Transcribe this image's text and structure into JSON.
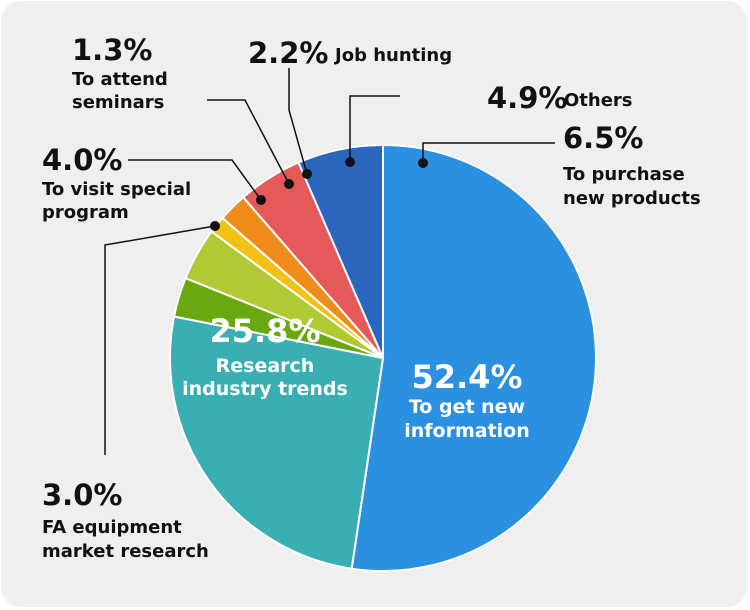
{
  "chart_data": {
    "type": "pie",
    "start_angle_deg": 0,
    "direction": "clockwise",
    "series": [
      {
        "name": "To get new information",
        "value": 52.4,
        "color": "#2b90e0",
        "pct_label": "52.4%",
        "lines": [
          "To get new",
          "information"
        ],
        "label_placement": "inside"
      },
      {
        "name": "Research industry trends",
        "value": 25.8,
        "color": "#3aafb3",
        "pct_label": "25.8%",
        "lines": [
          "Research",
          "industry trends"
        ],
        "label_placement": "inside"
      },
      {
        "name": "FA equipment market research",
        "value": 3.0,
        "color": "#6aa812",
        "pct_label": "3.0%",
        "lines": [
          "FA equipment",
          "market research"
        ],
        "label_placement": "outside"
      },
      {
        "name": "To visit special program",
        "value": 4.0,
        "color": "#b1c932",
        "pct_label": "4.0%",
        "lines": [
          "To visit special",
          "program"
        ],
        "label_placement": "outside"
      },
      {
        "name": "To attend seminars",
        "value": 1.3,
        "color": "#f4c013",
        "pct_label": "1.3%",
        "lines": [
          "To attend",
          "seminars"
        ],
        "label_placement": "outside"
      },
      {
        "name": "Job hunting",
        "value": 2.2,
        "color": "#f08c1a",
        "pct_label": "2.2%",
        "lines": [
          "Job hunting"
        ],
        "label_placement": "outside"
      },
      {
        "name": "Others",
        "value": 4.9,
        "color": "#e55a59",
        "pct_label": "4.9%",
        "lines": [
          "Others"
        ],
        "label_placement": "outside"
      },
      {
        "name": "To purchase new products",
        "value": 6.5,
        "color": "#2a66be",
        "pct_label": "6.5%",
        "lines": [
          "To purchase",
          "new products"
        ],
        "label_placement": "outside"
      }
    ],
    "title": "",
    "legend": "none"
  }
}
